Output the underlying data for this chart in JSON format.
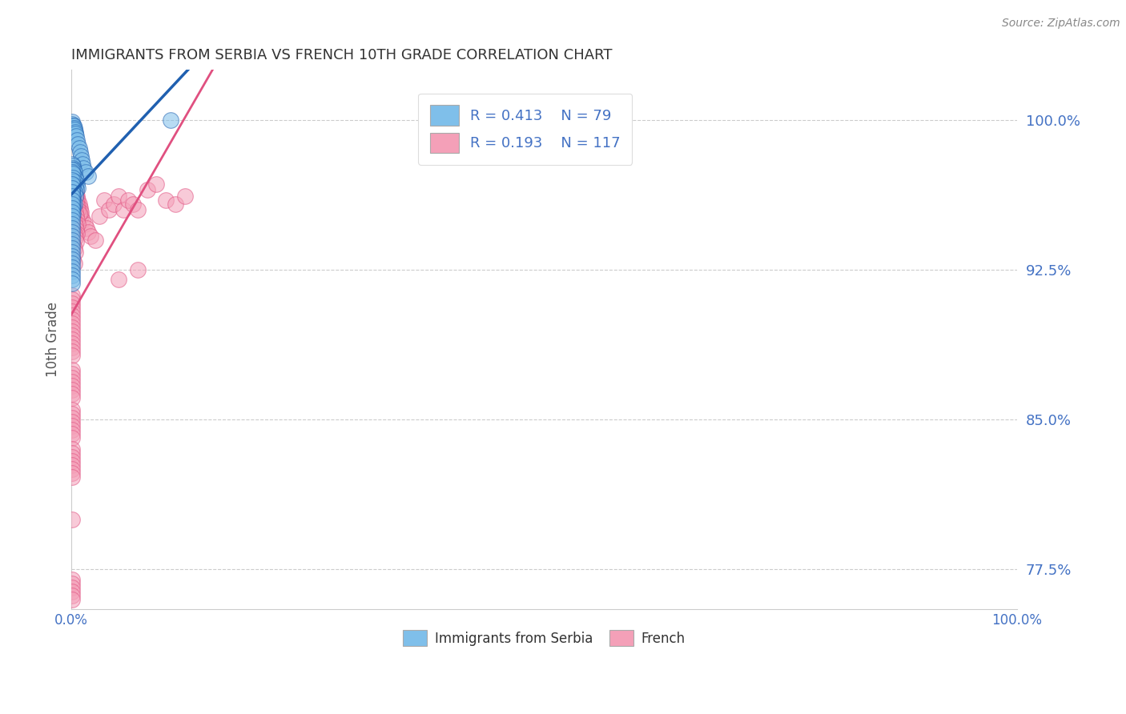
{
  "title": "IMMIGRANTS FROM SERBIA VS FRENCH 10TH GRADE CORRELATION CHART",
  "source": "Source: ZipAtlas.com",
  "ylabel": "10th Grade",
  "yticks": [
    0.775,
    0.85,
    0.925,
    1.0
  ],
  "ytick_labels": [
    "77.5%",
    "85.0%",
    "92.5%",
    "100.0%"
  ],
  "legend_blue_r": "R = 0.413",
  "legend_blue_n": "N = 79",
  "legend_pink_r": "R = 0.193",
  "legend_pink_n": "N = 117",
  "blue_scatter_color": "#7fbfea",
  "blue_line_color": "#2060b0",
  "pink_scatter_color": "#f4a0b8",
  "pink_line_color": "#e05080",
  "tick_color": "#4472c4",
  "title_color": "#333333",
  "source_color": "#888888",
  "grid_color": "#cccccc",
  "xlim": [
    0.0,
    1.0
  ],
  "ylim": [
    0.755,
    1.025
  ],
  "blue_x": [
    0.0008,
    0.0012,
    0.0015,
    0.002,
    0.0025,
    0.003,
    0.0035,
    0.004,
    0.0045,
    0.005,
    0.006,
    0.007,
    0.008,
    0.009,
    0.01,
    0.011,
    0.012,
    0.013,
    0.015,
    0.018,
    0.001,
    0.0015,
    0.002,
    0.0025,
    0.003,
    0.0035,
    0.004,
    0.005,
    0.006,
    0.007,
    0.001,
    0.0012,
    0.0015,
    0.002,
    0.003,
    0.004,
    0.005,
    0.001,
    0.0015,
    0.002,
    0.003,
    0.004,
    0.001,
    0.0015,
    0.002,
    0.003,
    0.001,
    0.0015,
    0.002,
    0.001,
    0.0015,
    0.001,
    0.001,
    0.001,
    0.001,
    0.001,
    0.001,
    0.001,
    0.001,
    0.001,
    0.001,
    0.001,
    0.001,
    0.001,
    0.001,
    0.001,
    0.001,
    0.001,
    0.001,
    0.001,
    0.001,
    0.001,
    0.001,
    0.001,
    0.001,
    0.001,
    0.001,
    0.001,
    0.105
  ],
  "blue_y": [
    0.999,
    0.998,
    0.997,
    0.996,
    0.997,
    0.996,
    0.995,
    0.994,
    0.993,
    0.992,
    0.99,
    0.988,
    0.986,
    0.984,
    0.982,
    0.98,
    0.978,
    0.976,
    0.974,
    0.972,
    0.978,
    0.977,
    0.976,
    0.975,
    0.974,
    0.972,
    0.971,
    0.97,
    0.968,
    0.966,
    0.975,
    0.974,
    0.973,
    0.971,
    0.969,
    0.967,
    0.965,
    0.968,
    0.967,
    0.966,
    0.964,
    0.962,
    0.964,
    0.962,
    0.96,
    0.958,
    0.96,
    0.958,
    0.956,
    0.956,
    0.953,
    0.97,
    0.968,
    0.966,
    0.964,
    0.962,
    0.96,
    0.958,
    0.956,
    0.954,
    0.952,
    0.95,
    0.948,
    0.946,
    0.944,
    0.942,
    0.94,
    0.938,
    0.936,
    0.934,
    0.932,
    0.93,
    0.928,
    0.926,
    0.924,
    0.922,
    0.92,
    0.918,
    1.0
  ],
  "pink_x": [
    0.001,
    0.002,
    0.003,
    0.004,
    0.005,
    0.006,
    0.007,
    0.008,
    0.009,
    0.01,
    0.012,
    0.014,
    0.016,
    0.018,
    0.02,
    0.025,
    0.03,
    0.035,
    0.04,
    0.045,
    0.05,
    0.055,
    0.06,
    0.065,
    0.07,
    0.08,
    0.09,
    0.1,
    0.11,
    0.12,
    0.001,
    0.002,
    0.003,
    0.004,
    0.005,
    0.006,
    0.007,
    0.008,
    0.009,
    0.01,
    0.002,
    0.003,
    0.004,
    0.005,
    0.006,
    0.007,
    0.008,
    0.002,
    0.003,
    0.004,
    0.005,
    0.006,
    0.007,
    0.002,
    0.003,
    0.004,
    0.005,
    0.006,
    0.002,
    0.003,
    0.004,
    0.005,
    0.002,
    0.003,
    0.004,
    0.002,
    0.003,
    0.05,
    0.07,
    0.001,
    0.001,
    0.001,
    0.001,
    0.001,
    0.001,
    0.001,
    0.001,
    0.001,
    0.001,
    0.001,
    0.001,
    0.001,
    0.001,
    0.001,
    0.001,
    0.001,
    0.001,
    0.001,
    0.001,
    0.001,
    0.001,
    0.001,
    0.001,
    0.001,
    0.001,
    0.001,
    0.001,
    0.001,
    0.001,
    0.001,
    0.001,
    0.001,
    0.001,
    0.001,
    0.001,
    0.001,
    0.001,
    0.001,
    0.001,
    0.001,
    0.001,
    0.001,
    0.001,
    0.001,
    0.001,
    0.001
  ],
  "pink_y": [
    0.97,
    0.968,
    0.966,
    0.964,
    0.962,
    0.96,
    0.958,
    0.956,
    0.954,
    0.952,
    0.95,
    0.948,
    0.946,
    0.944,
    0.942,
    0.94,
    0.952,
    0.96,
    0.955,
    0.958,
    0.962,
    0.955,
    0.96,
    0.958,
    0.955,
    0.965,
    0.968,
    0.96,
    0.958,
    0.962,
    0.972,
    0.97,
    0.968,
    0.966,
    0.964,
    0.962,
    0.96,
    0.958,
    0.956,
    0.954,
    0.965,
    0.963,
    0.961,
    0.959,
    0.957,
    0.955,
    0.953,
    0.958,
    0.956,
    0.954,
    0.952,
    0.95,
    0.948,
    0.951,
    0.949,
    0.947,
    0.945,
    0.943,
    0.945,
    0.943,
    0.941,
    0.939,
    0.938,
    0.936,
    0.934,
    0.93,
    0.928,
    0.92,
    0.925,
    0.912,
    0.91,
    0.908,
    0.906,
    0.904,
    0.902,
    0.9,
    0.898,
    0.896,
    0.894,
    0.892,
    0.89,
    0.888,
    0.886,
    0.884,
    0.882,
    0.875,
    0.873,
    0.871,
    0.869,
    0.867,
    0.865,
    0.863,
    0.861,
    0.855,
    0.853,
    0.851,
    0.849,
    0.847,
    0.845,
    0.843,
    0.841,
    0.835,
    0.833,
    0.831,
    0.829,
    0.827,
    0.825,
    0.823,
    0.821,
    0.8,
    0.77,
    0.768,
    0.766,
    0.764,
    0.762,
    0.76
  ]
}
